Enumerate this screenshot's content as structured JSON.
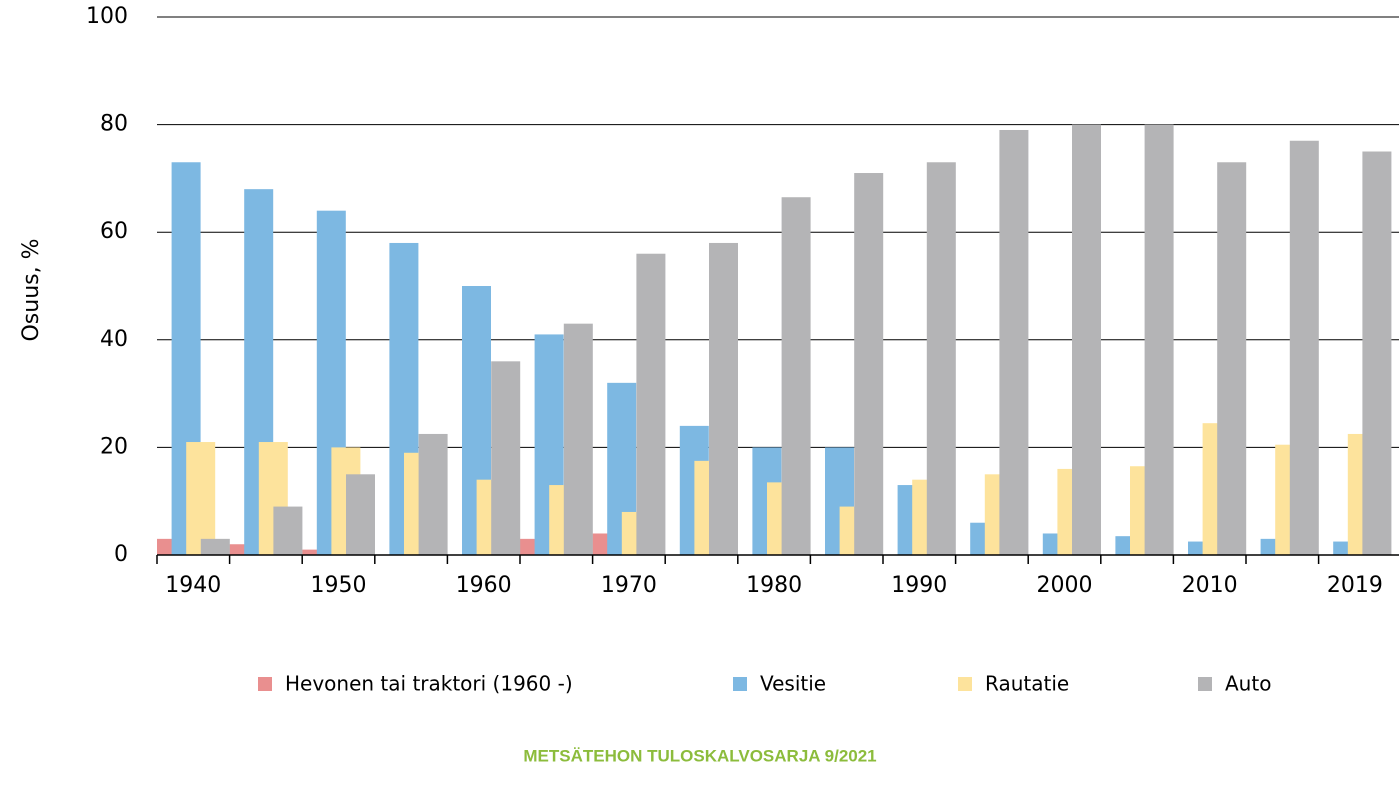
{
  "chart_data": {
    "type": "bar",
    "y_label": "Osuus, %",
    "footer": "METSÄTEHON TULOSKALVOSARJA 9/2021",
    "categories": [
      "1940",
      null,
      "1950",
      null,
      "1960",
      null,
      "1970",
      null,
      "1980",
      null,
      "1990",
      null,
      "2000",
      null,
      "2010",
      null,
      "2019"
    ],
    "series": [
      {
        "name": "Hevonen tai traktori (1960 -)",
        "color": "#e98f8f",
        "values": [
          3,
          2,
          1,
          0,
          0,
          3,
          4,
          0,
          0,
          0,
          0,
          0,
          0,
          0,
          0,
          0,
          0
        ]
      },
      {
        "name": "Vesitie",
        "color": "#7db8e2",
        "values": [
          73,
          68,
          64,
          58,
          50,
          41,
          32,
          24,
          20,
          20,
          13,
          6,
          4,
          3.5,
          2.5,
          3,
          2.5
        ]
      },
      {
        "name": "Rautatie",
        "color": "#fde39c",
        "values": [
          21,
          21,
          20,
          19,
          14,
          13,
          8,
          17.5,
          13.5,
          9,
          14,
          15,
          16,
          16.5,
          24.5,
          20.5,
          22.5
        ]
      },
      {
        "name": "Auto",
        "color": "#b4b4b6",
        "values": [
          3,
          9,
          15,
          22.5,
          36,
          43,
          56,
          58,
          66.5,
          71,
          73,
          79,
          80,
          80,
          73,
          77,
          75
        ]
      }
    ],
    "ylim": [
      0,
      100
    ],
    "yticks": [
      0,
      20,
      40,
      60,
      80,
      100
    ],
    "grid": true
  }
}
